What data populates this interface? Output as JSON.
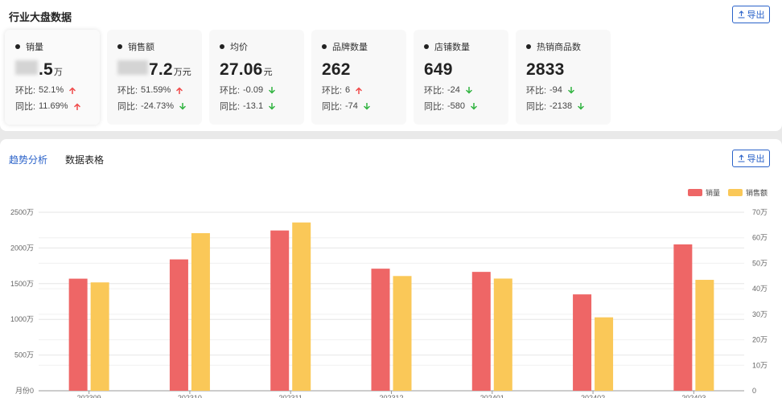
{
  "header": {
    "title": "行业大盘数据",
    "export_label": "导出"
  },
  "cards": [
    {
      "label": "销量",
      "value": ".5",
      "unit": "万",
      "blur_prefix": true,
      "hb_label": "环比:",
      "hb_value": "52.1%",
      "hb_dir": "up",
      "tb_label": "同比:",
      "tb_value": "11.69%",
      "tb_dir": "up"
    },
    {
      "label": "销售额",
      "value": "7.2",
      "unit": "万元",
      "blur_prefix": true,
      "hb_label": "环比:",
      "hb_value": "51.59%",
      "hb_dir": "up",
      "tb_label": "同比:",
      "tb_value": "-24.73%",
      "tb_dir": "down"
    },
    {
      "label": "均价",
      "value": "27.06",
      "unit": "元",
      "blur_prefix": false,
      "hb_label": "环比:",
      "hb_value": "-0.09",
      "hb_dir": "down",
      "tb_label": "同比:",
      "tb_value": "-13.1",
      "tb_dir": "down"
    },
    {
      "label": "品牌数量",
      "value": "262",
      "unit": "",
      "blur_prefix": false,
      "hb_label": "环比:",
      "hb_value": "6",
      "hb_dir": "up",
      "tb_label": "同比:",
      "tb_value": "-74",
      "tb_dir": "down"
    },
    {
      "label": "店铺数量",
      "value": "649",
      "unit": "",
      "blur_prefix": false,
      "hb_label": "环比:",
      "hb_value": "-24",
      "hb_dir": "down",
      "tb_label": "同比:",
      "tb_value": "-580",
      "tb_dir": "down"
    },
    {
      "label": "热销商品数",
      "value": "2833",
      "unit": "",
      "blur_prefix": false,
      "hb_label": "环比:",
      "hb_value": "-94",
      "hb_dir": "down",
      "tb_label": "同比:",
      "tb_value": "-2138",
      "tb_dir": "down"
    }
  ],
  "tabs": [
    {
      "label": "趋势分析",
      "active": true
    },
    {
      "label": "数据表格",
      "active": false
    }
  ],
  "colors": {
    "accent": "#2a62c9",
    "up": "#f04848",
    "down": "#2fb33f",
    "series1": "#ee6666",
    "series2": "#fac858"
  },
  "icons": {
    "export": "upload-icon",
    "up": "arrow-up-icon",
    "down": "arrow-down-icon"
  },
  "chart_data": {
    "type": "bar",
    "categories": [
      "202309",
      "202310",
      "202311",
      "202312",
      "202401",
      "202402",
      "202403"
    ],
    "series": [
      {
        "name": "销量",
        "axis": "left",
        "values": [
          1570,
          1840,
          2245,
          1710,
          1665,
          1350,
          2050
        ]
      },
      {
        "name": "销售额",
        "axis": "right",
        "values": [
          42.5,
          61.8,
          66.0,
          45.0,
          44.0,
          28.8,
          43.5
        ]
      }
    ],
    "y_left": {
      "ticks": [
        "月份0",
        "500万",
        "1000万",
        "1500万",
        "2000万",
        "2500万"
      ],
      "range": [
        0,
        2500
      ]
    },
    "y_right": {
      "ticks": [
        "0",
        "10万",
        "20万",
        "30万",
        "40万",
        "50万",
        "60万",
        "70万"
      ],
      "range": [
        0,
        70
      ]
    },
    "legend_position": "top-right",
    "grid": true
  }
}
